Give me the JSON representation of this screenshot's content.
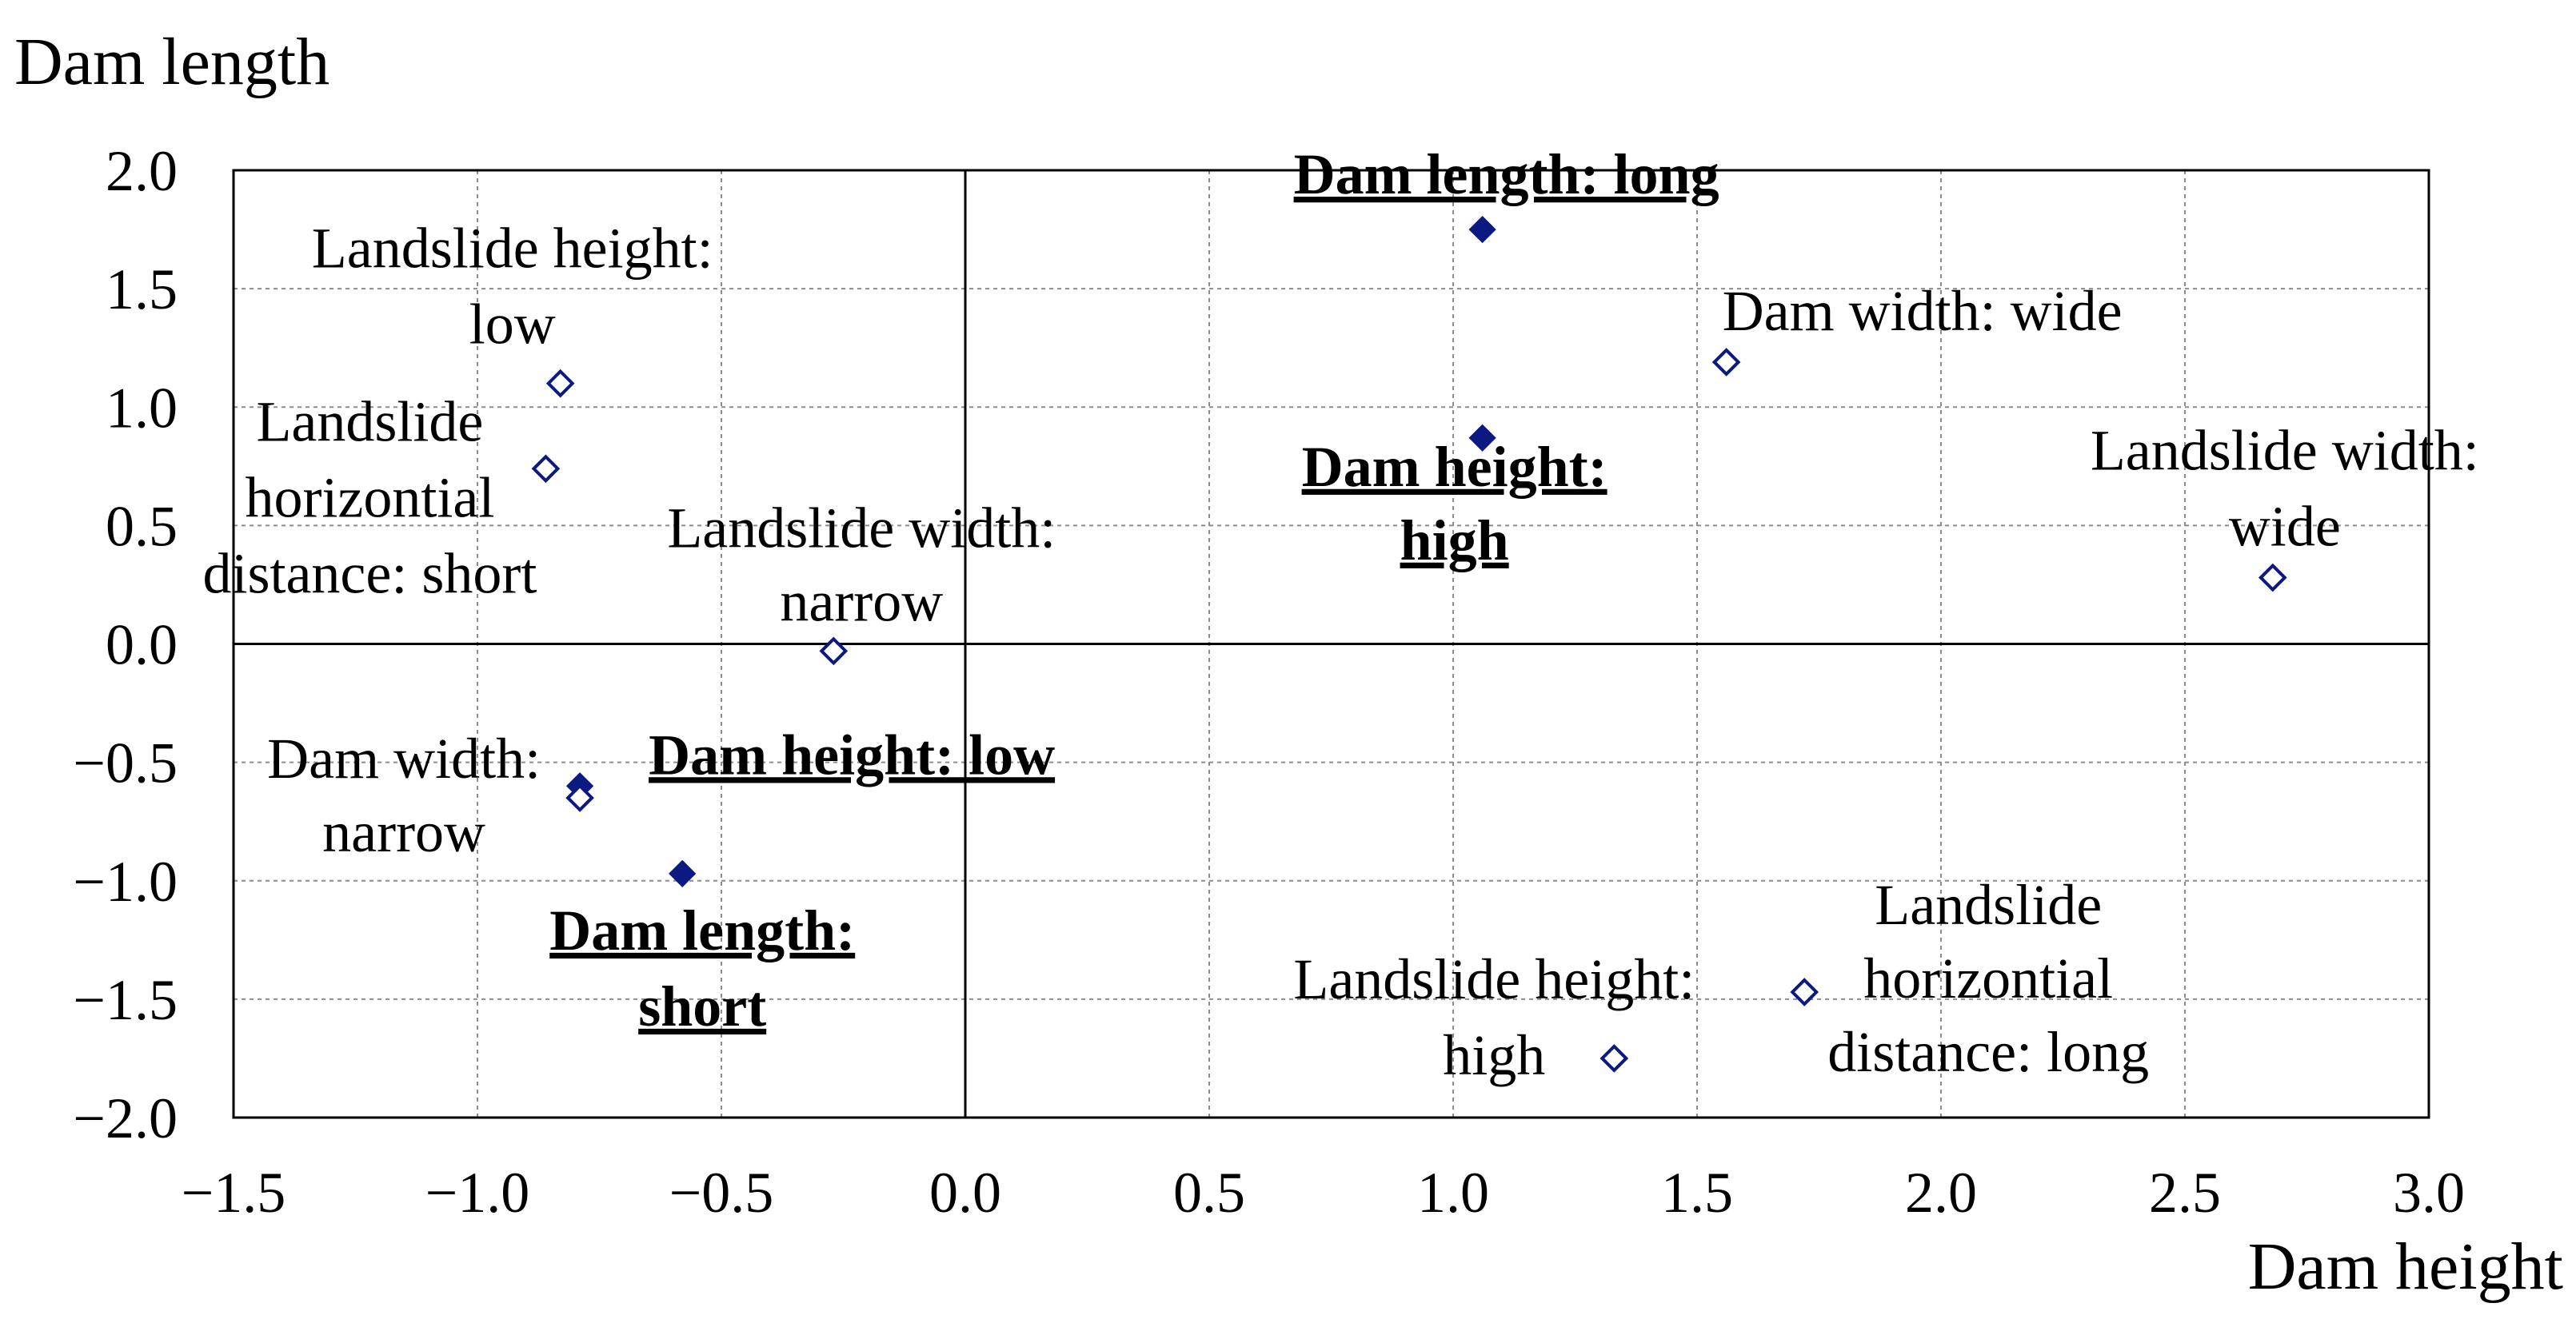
{
  "chart_data": {
    "type": "scatter",
    "title": "",
    "xlabel": "Dam height",
    "ylabel": "Dam length",
    "xlim": [
      -1.5,
      3.0
    ],
    "ylim": [
      -2.0,
      2.0
    ],
    "xticks": [
      -1.5,
      -1.0,
      -0.5,
      0.0,
      0.5,
      1.0,
      1.5,
      2.0,
      2.5,
      3.0
    ],
    "yticks": [
      2.0,
      1.5,
      1.0,
      0.5,
      0.0,
      -0.5,
      -1.0,
      -1.5,
      -2.0
    ],
    "xtick_labels": [
      "−1.5",
      "−1.0",
      "−0.5",
      "0.0",
      "0.5",
      "1.0",
      "1.5",
      "2.0",
      "2.5",
      "3.0"
    ],
    "ytick_labels": [
      "2.0",
      "1.5",
      "1.0",
      "0.5",
      "0.0",
      "−0.5",
      "−1.0",
      "−1.5",
      "−2.0"
    ],
    "grid": true,
    "marker": "diamond",
    "marker_color": "#0a1a80",
    "points": [
      {
        "label_lines": [
          "Dam length: long"
        ],
        "x": 1.06,
        "y": 1.75,
        "filled": true,
        "bold": true
      },
      {
        "label_lines": [
          "Dam height:",
          "high"
        ],
        "x": 1.06,
        "y": 0.87,
        "filled": true,
        "bold": true
      },
      {
        "label_lines": [
          "Dam height: low"
        ],
        "x": -0.79,
        "y": -0.6,
        "filled": true,
        "bold": true
      },
      {
        "label_lines": [
          "Dam length:",
          "short"
        ],
        "x": -0.58,
        "y": -0.97,
        "filled": true,
        "bold": true
      },
      {
        "label_lines": [
          "Landslide height:",
          "low"
        ],
        "x": -0.83,
        "y": 1.1,
        "filled": false,
        "bold": false
      },
      {
        "label_lines": [
          "Landslide",
          "horizontial",
          "distance: short"
        ],
        "x": -0.86,
        "y": 0.74,
        "filled": false,
        "bold": false
      },
      {
        "label_lines": [
          "Landslide width:",
          "narrow"
        ],
        "x": -0.27,
        "y": -0.03,
        "filled": false,
        "bold": false
      },
      {
        "label_lines": [
          "Dam width:",
          "narrow"
        ],
        "x": -0.79,
        "y": -0.65,
        "filled": false,
        "bold": false
      },
      {
        "label_lines": [
          "Dam width: wide"
        ],
        "x": 1.56,
        "y": 1.19,
        "filled": false,
        "bold": false
      },
      {
        "label_lines": [
          "Landslide width:",
          "wide"
        ],
        "x": 2.68,
        "y": 0.28,
        "filled": false,
        "bold": false
      },
      {
        "label_lines": [
          "Landslide height:",
          "high"
        ],
        "x": 1.33,
        "y": -1.75,
        "filled": false,
        "bold": false
      },
      {
        "label_lines": [
          "Landslide",
          "horizontial",
          "distance: long"
        ],
        "x": 1.72,
        "y": -1.47,
        "filled": false,
        "bold": false
      }
    ]
  }
}
